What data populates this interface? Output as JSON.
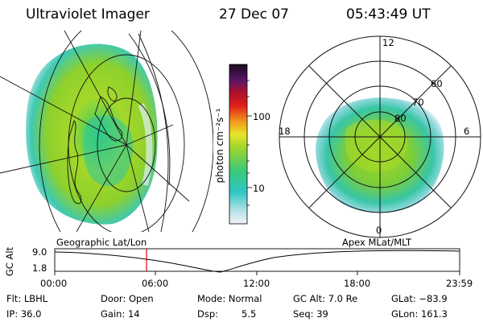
{
  "header": {
    "instrument": "Ultraviolet Imager",
    "date": "27 Dec 07",
    "time": "05:43:49 UT"
  },
  "colorbar": {
    "label": "photon cm⁻²s⁻¹",
    "ticks": [
      "100",
      "10"
    ]
  },
  "polar_plot": {
    "mlt_labels": [
      "12",
      "18",
      "6",
      "0"
    ],
    "lat_labels": [
      "60",
      "70",
      "80"
    ]
  },
  "orbit": {
    "left_label": "Geographic Lat/Lon",
    "right_label": "Apex MLat/MLT",
    "axis_label": "GC Alt",
    "y_ticks": [
      "9.0",
      "1.8"
    ],
    "x_ticks": [
      "00:00",
      "06:00",
      "12:00",
      "18:00",
      "23:59"
    ],
    "marker_color": "#e00000"
  },
  "info": {
    "filter": "Flt: LBHL",
    "ip": "IP: 36.0",
    "door": "Door: Open",
    "gain": "Gain: 14",
    "mode": "Mode: Normal",
    "dsp_label": "Dsp:",
    "dsp_value": "5.5",
    "gc_alt": "GC Alt: 7.0 Re",
    "seq": "Seq: 39",
    "glat": "GLat: −83.9",
    "glon": "GLon: 161.3"
  }
}
